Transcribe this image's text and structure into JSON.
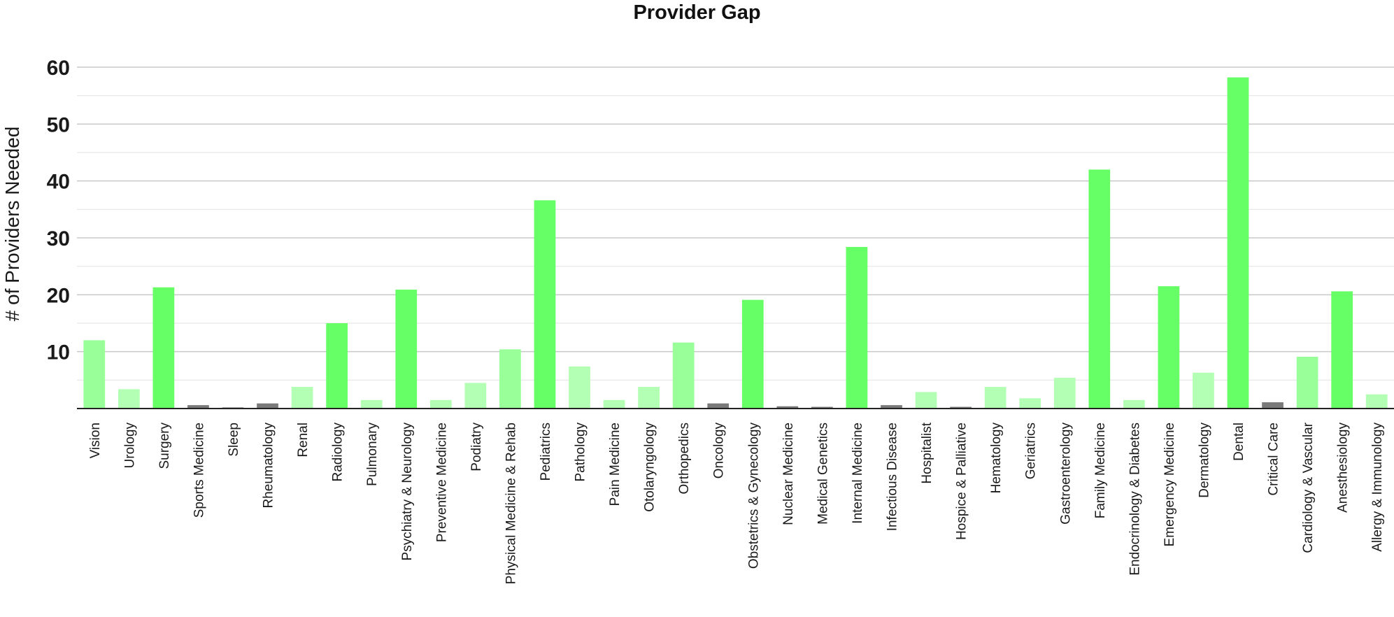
{
  "chart_data": {
    "type": "bar",
    "title": "Provider Gap",
    "xlabel": "",
    "ylabel": "# of Providers Needed",
    "ylim": [
      0,
      60
    ],
    "y_ticks": [
      10,
      20,
      30,
      40,
      50,
      60
    ],
    "grid": true,
    "legend": "none",
    "categories": [
      "Vision",
      "Urology",
      "Surgery",
      "Sports Medicine",
      "Sleep",
      "Rheumatology",
      "Renal",
      "Radiology",
      "Pulmonary",
      "Psychiatry & Neurology",
      "Preventive Medicine",
      "Podiatry",
      "Physical Medicine & Rehab",
      "Pediatrics",
      "Pathology",
      "Pain Medicine",
      "Otolaryngology",
      "Orthopedics",
      "Oncology",
      "Obstetrics & Gynecology",
      "Nuclear Medicine",
      "Medical Genetics",
      "Internal Medicine",
      "Infectious Disease",
      "Hospitalist",
      "Hospice & Palliative",
      "Hematology",
      "Geriatrics",
      "Gastroenterology",
      "Family Medicine",
      "Endocrinology & Diabetes",
      "Emergency Medicine",
      "Dermatology",
      "Dental",
      "Critical Care",
      "Cardiology & Vascular",
      "Anesthesiology",
      "Allergy & Immunology"
    ],
    "values": [
      12,
      3.4,
      21.3,
      0.6,
      0.2,
      0.9,
      3.8,
      15,
      1.5,
      20.9,
      1.5,
      4.5,
      10.4,
      36.6,
      7.4,
      1.5,
      3.8,
      11.6,
      0.9,
      19.1,
      0.4,
      0.3,
      28.4,
      0.6,
      2.9,
      0.3,
      3.8,
      1.8,
      5.4,
      42,
      1.5,
      21.5,
      6.3,
      58.2,
      1.1,
      9.1,
      20.6,
      2.5
    ],
    "color_scale": {
      "high": "#66ff66",
      "medium": "#99ff99",
      "low": "#b3ffb3",
      "minimal": "#7a7a7a"
    }
  }
}
